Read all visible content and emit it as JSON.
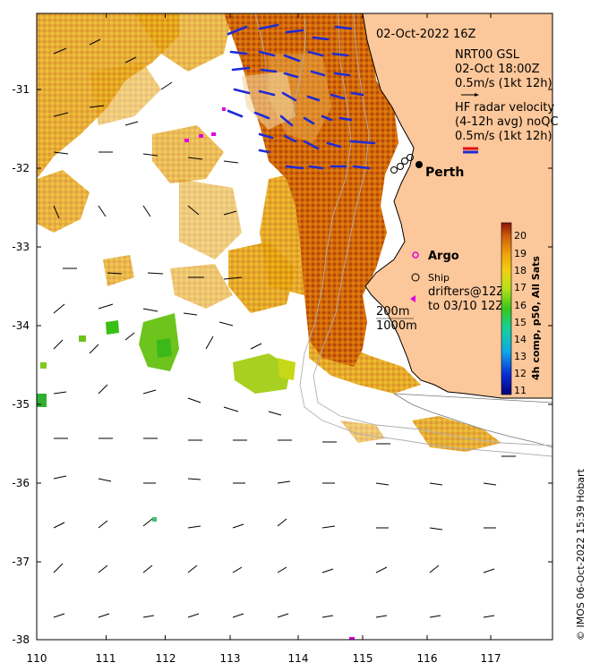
{
  "map": {
    "title_time": "02-Oct-2022 16Z",
    "legend": {
      "model_label": "NRT00 GSL",
      "model_time": "02-Oct 18:00Z",
      "model_scale": "0.5m/s (1kt 12h)",
      "radar_label": "HF radar velocity",
      "radar_note": "(4-12h avg) noQC",
      "radar_scale": "0.5m/s (1kt 12h)",
      "argo_label": "Argo",
      "ship_label": "Ship",
      "drifters_label": "drifters@12Z",
      "drifters_to": "to 03/10 12Z",
      "isobath_200": "200m",
      "isobath_1000": "1000m"
    },
    "place_label": "Perth",
    "x_ticks": [
      "110",
      "111",
      "112",
      "113",
      "114",
      "115",
      "116",
      "117"
    ],
    "y_ticks": [
      "-31",
      "-32",
      "-33",
      "-34",
      "-35",
      "-36",
      "-37",
      "-38"
    ],
    "colorbar": {
      "title": "4h comp, p50, All Sats",
      "ticks": [
        "20",
        "19",
        "18",
        "17",
        "16",
        "15",
        "14",
        "13",
        "12",
        "11"
      ]
    },
    "credit": "© IMOS 06-Oct-2022 15:39 Hobart",
    "colors": {
      "land": "#fcc79a",
      "radar_arrows": "#1f2bd6",
      "argo": "#e000e0",
      "sst_warm": "#c85a08",
      "sst_mid": "#e69a10",
      "sst_cool": "#5cc21a"
    }
  }
}
